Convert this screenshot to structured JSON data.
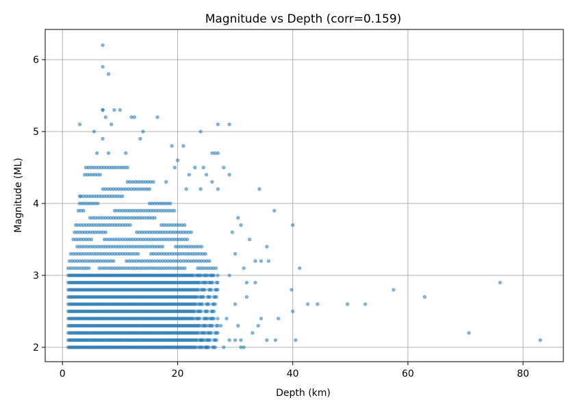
{
  "chart_data": {
    "type": "scatter",
    "title": "Magnitude vs Depth (corr=0.159)",
    "xlabel": "Depth (km)",
    "ylabel": "Magnitude (ML)",
    "xlim": [
      -3,
      87
    ],
    "ylim": [
      1.8,
      6.42
    ],
    "x_ticks": [
      0,
      20,
      40,
      60,
      80
    ],
    "x_tick_labels": [
      "0",
      "20",
      "40",
      "60",
      "80"
    ],
    "y_ticks": [
      2,
      3,
      4,
      5,
      6
    ],
    "y_tick_labels": [
      "2",
      "3",
      "4",
      "5",
      "6"
    ],
    "grid": true,
    "point_color": "#1f77b4",
    "point_opacity": 0.55,
    "dense_band": {
      "depth_range": [
        1,
        27
      ],
      "magnitudes": [
        2.0,
        2.1,
        2.2,
        2.3,
        2.4,
        2.5,
        2.6,
        2.7,
        2.8,
        2.9,
        3.0
      ]
    },
    "series": [
      {
        "x": [
          7.0,
          7.0,
          8.0,
          3.0,
          7.0,
          7.0,
          9.0,
          10.0,
          12.0,
          12.5,
          16.5,
          7.5,
          5.5,
          8.5,
          14.0,
          7.0,
          8.0,
          11.0,
          6.0,
          13.5,
          3.0,
          24.0,
          27.0,
          29.0,
          27.0,
          21.0,
          26.0,
          26.5,
          19.0,
          20.0,
          23.0,
          28.0,
          19.5,
          24.5,
          25.0,
          29.0,
          22.0,
          26.0,
          18.0,
          21.5,
          24.0,
          27.0,
          30.5,
          31.0,
          34.2,
          36.8,
          40.0,
          29.5,
          32.5,
          35.5,
          30.0,
          33.5,
          31.5,
          34.5,
          35.8,
          41.2,
          29.0,
          32.0,
          33.5,
          39.8,
          40.0,
          42.6,
          44.3,
          49.5,
          52.6,
          57.5,
          62.9,
          76.0,
          34.5,
          37.5,
          30.5,
          34.0,
          33.0,
          35.5,
          37.0,
          40.5,
          70.6,
          83.0,
          25.0,
          28.0,
          30.0,
          31.0,
          31.5,
          24.0,
          29.0,
          31.0,
          32.0,
          27.5,
          30.0,
          28.5
        ],
        "y": [
          6.2,
          5.9,
          5.8,
          5.1,
          5.3,
          5.3,
          5.3,
          5.3,
          5.2,
          5.2,
          5.2,
          5.2,
          5.0,
          5.1,
          5.0,
          4.9,
          4.7,
          4.7,
          4.7,
          4.9,
          4.1,
          5.0,
          5.1,
          5.1,
          4.7,
          4.8,
          4.7,
          4.7,
          4.8,
          4.6,
          4.5,
          4.5,
          4.5,
          4.5,
          4.4,
          4.4,
          4.4,
          4.3,
          4.3,
          4.2,
          4.2,
          4.2,
          3.8,
          3.7,
          4.2,
          3.9,
          3.7,
          3.6,
          3.5,
          3.4,
          3.3,
          3.2,
          3.1,
          3.2,
          3.2,
          3.1,
          3.0,
          2.9,
          2.9,
          2.8,
          2.5,
          2.6,
          2.6,
          2.6,
          2.6,
          2.8,
          2.7,
          2.9,
          2.4,
          2.4,
          2.3,
          2.3,
          2.2,
          2.1,
          2.1,
          2.1,
          2.2,
          2.1,
          2.0,
          2.0,
          2.1,
          2.0,
          2.0,
          2.1,
          2.1,
          2.1,
          2.7,
          2.3,
          2.6,
          2.4
        ]
      }
    ]
  }
}
